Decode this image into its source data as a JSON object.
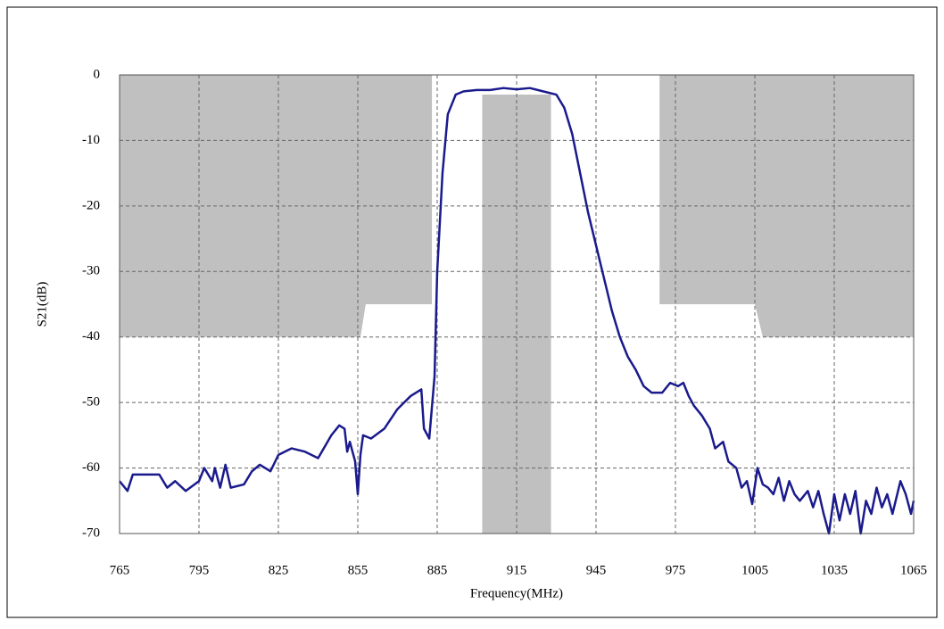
{
  "chart_data": {
    "type": "line",
    "x_label": "Frequency(MHz)",
    "y_label": "S21(dB)",
    "xlim": [
      765,
      1065
    ],
    "ylim": [
      -70,
      0
    ],
    "xticks": [
      765,
      795,
      825,
      855,
      885,
      915,
      945,
      975,
      1005,
      1035,
      1065
    ],
    "yticks": [
      0,
      -10,
      -20,
      -30,
      -40,
      -50,
      -60,
      -70
    ],
    "grid": true,
    "mask_color": "#c0c0c0",
    "mask_regions": [
      {
        "x": [
          765,
          883,
          883,
          858,
          856,
          765
        ],
        "y": [
          0,
          0,
          -35,
          -35,
          -40,
          -40
        ]
      },
      {
        "x": [
          902,
          928,
          928,
          902
        ],
        "y": [
          -3,
          -3,
          -70,
          -70
        ]
      },
      {
        "x": [
          969,
          1065,
          1065,
          1008,
          1005,
          969
        ],
        "y": [
          0,
          0,
          -40,
          -40,
          -35,
          -35
        ]
      }
    ],
    "series": [
      {
        "color": "#1a1a8c",
        "x": [
          765,
          768,
          770,
          775,
          780,
          783,
          786,
          790,
          795,
          797,
          800,
          801,
          803,
          805,
          807,
          812,
          815,
          818,
          822,
          825,
          830,
          835,
          840,
          845,
          848,
          850,
          851,
          852,
          854,
          855,
          856,
          857,
          860,
          865,
          870,
          875,
          879,
          880,
          882,
          884,
          885,
          887,
          889,
          892,
          895,
          900,
          905,
          910,
          915,
          920,
          925,
          930,
          933,
          936,
          939,
          942,
          945,
          948,
          951,
          954,
          957,
          960,
          963,
          966,
          970,
          973,
          976,
          978,
          980,
          982,
          985,
          988,
          990,
          993,
          995,
          998,
          1000,
          1002,
          1004,
          1006,
          1008,
          1010,
          1012,
          1014,
          1016,
          1018,
          1020,
          1022,
          1025,
          1027,
          1029,
          1031,
          1033,
          1035,
          1037,
          1039,
          1041,
          1043,
          1045,
          1047,
          1049,
          1051,
          1053,
          1055,
          1057,
          1060,
          1062,
          1064,
          1065
        ],
        "values": [
          -62,
          -63.5,
          -61,
          -61,
          -61,
          -63,
          -62,
          -63.5,
          -62,
          -60,
          -62,
          -60,
          -63,
          -59.5,
          -63,
          -62.5,
          -60.5,
          -59.5,
          -60.5,
          -58,
          -57,
          -57.5,
          -58.5,
          -55,
          -53.5,
          -54,
          -57.5,
          -56,
          -59,
          -64,
          -58,
          -55,
          -55.5,
          -54,
          -51,
          -49,
          -48,
          -54,
          -55.5,
          -46,
          -30,
          -15,
          -6,
          -3,
          -2.5,
          -2.3,
          -2.3,
          -2,
          -2.2,
          -2,
          -2.5,
          -3,
          -5,
          -9,
          -15,
          -21,
          -26,
          -31,
          -36,
          -40,
          -43,
          -45,
          -47.5,
          -48.5,
          -48.5,
          -47,
          -47.5,
          -47,
          -49,
          -50.5,
          -52,
          -54,
          -57,
          -56,
          -59,
          -60,
          -63,
          -62,
          -65.5,
          -60,
          -62.5,
          -63,
          -64,
          -61.5,
          -65,
          -62,
          -64,
          -65,
          -63.5,
          -66,
          -63.5,
          -67,
          -70,
          -64,
          -68,
          -64,
          -67,
          -63.5,
          -70,
          -65,
          -67,
          -63,
          -66,
          -64,
          -67,
          -62,
          -64,
          -67,
          -65
        ]
      }
    ]
  }
}
